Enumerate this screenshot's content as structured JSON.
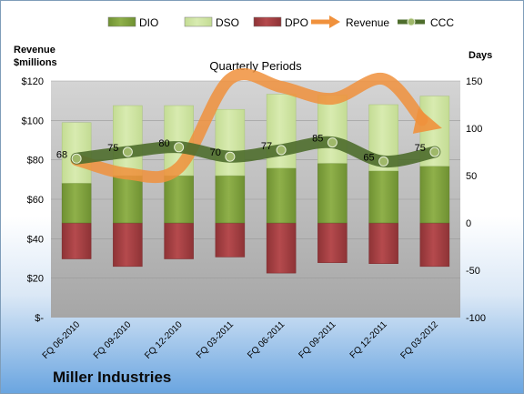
{
  "colors": {
    "dio": "#8fb04a",
    "dso": "#d8ebb0",
    "dpo": "#b54a4d",
    "revenue": "#f0913c",
    "ccc": "#4e6d2c",
    "plot_bg_top": "#d4d4d4",
    "plot_bg_bottom": "#a6a6a6"
  },
  "company_name": "Miller Industries",
  "chart_data": {
    "type": "bar",
    "title": "Quarterly Periods",
    "categories": [
      "FQ 06-2010",
      "FQ 09-2010",
      "FQ 12-2010",
      "FQ 03-2011",
      "FQ 06-2011",
      "FQ 09-2011",
      "FQ 12-2011",
      "FQ 03-2012"
    ],
    "left_axis": {
      "label_line1": "Revenue",
      "label_line2": "$millions",
      "range": [
        0,
        120
      ],
      "ticks": [
        0,
        20,
        40,
        60,
        80,
        100,
        120
      ],
      "tick_labels": [
        "$-",
        "$20",
        "$40",
        "$60",
        "$80",
        "$100",
        "$120"
      ]
    },
    "right_axis": {
      "label": "Days",
      "range": [
        -100,
        150
      ],
      "ticks": [
        -100,
        -50,
        0,
        50,
        100,
        150
      ],
      "tick_labels": [
        "-100",
        "-50",
        "0",
        "50",
        "100",
        "150"
      ]
    },
    "legend": {
      "position": "top",
      "items": [
        {
          "key": "dio",
          "label": "DIO",
          "kind": "bar"
        },
        {
          "key": "dso",
          "label": "DSO",
          "kind": "bar"
        },
        {
          "key": "dpo",
          "label": "DPO",
          "kind": "bar"
        },
        {
          "key": "revenue",
          "label": "Revenue",
          "kind": "arrow"
        },
        {
          "key": "ccc",
          "label": "CCC",
          "kind": "line-marker"
        }
      ]
    },
    "series": [
      {
        "name": "DIO",
        "axis": "right",
        "values": [
          42,
          50,
          50,
          50,
          58,
          63,
          55,
          60
        ]
      },
      {
        "name": "DSO",
        "axis": "right",
        "values": [
          64,
          74,
          74,
          70,
          78,
          72,
          70,
          74
        ]
      },
      {
        "name": "DPO",
        "axis": "right",
        "values": [
          -38,
          -46,
          -38,
          -36,
          -53,
          -42,
          -43,
          -46
        ]
      },
      {
        "name": "Revenue",
        "axis": "left",
        "values": [
          80,
          73,
          76,
          121,
          117,
          111,
          121,
          97
        ]
      },
      {
        "name": "CCC",
        "axis": "right",
        "values": [
          68,
          75,
          80,
          70,
          77,
          85,
          65,
          75
        ],
        "labels": [
          "68",
          "75",
          "80",
          "70",
          "77",
          "85",
          "65",
          "75"
        ]
      }
    ]
  }
}
